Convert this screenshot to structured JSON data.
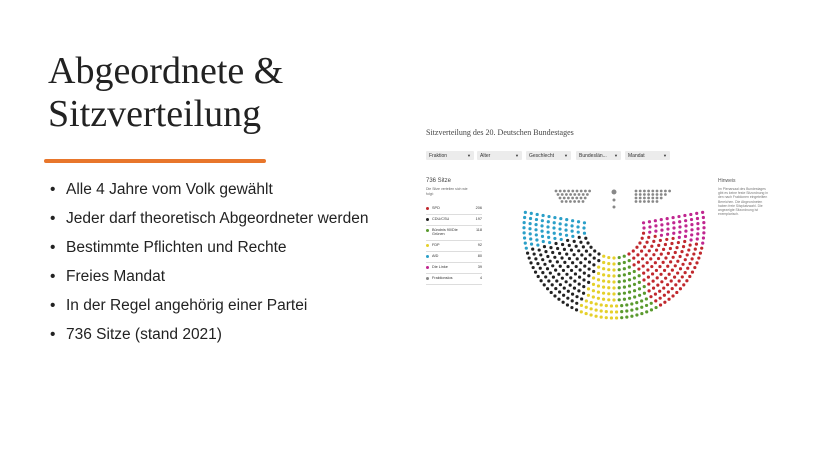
{
  "slide": {
    "title_line1": "Abgeordnete &",
    "title_line2": "Sitzverteilung",
    "accent_color": "#e8762b",
    "bullets": [
      "Alle 4 Jahre vom Volk gewählt",
      "Jeder darf theoretisch Abgeordneter werden",
      "Bestimmte Pflichten und Rechte",
      "Freies Mandat",
      "In der Regel angehörig einer Partei",
      "736 Sitze (stand 2021)"
    ]
  },
  "embed": {
    "title": "Sitzverteilung des 20. Deutschen Bundestages",
    "filters": [
      "Fraktion",
      "Alter",
      "Geschlecht",
      "Bundeslän...",
      "Mandat"
    ],
    "seat_count": "736 Sitze",
    "seat_note": "Die Sitze verteilen sich wie folgt:",
    "legend": [
      {
        "name": "SPD",
        "count": "206",
        "color": "#c0282d"
      },
      {
        "name": "CDU/CSU",
        "count": "197",
        "color": "#222222"
      },
      {
        "name": "Bündnis 90/Die Grünen",
        "count": "118",
        "color": "#5a9a2e"
      },
      {
        "name": "FDP",
        "count": "92",
        "color": "#e5d02a"
      },
      {
        "name": "AfD",
        "count": "80",
        "color": "#2a9fc8"
      },
      {
        "name": "Die Linke",
        "count": "39",
        "color": "#c0268f"
      },
      {
        "name": "Fraktionslos",
        "count": "4",
        "color": "#888888"
      }
    ],
    "hint": {
      "title": "Hinweis",
      "text": "Im Plenarsaal des Bundestages gibt es keine feste Sitzordnung in den nach Fraktionen eingeteilten Bereichen. Die Abgeordneten haben freie Sitzplatzwahl. Die angezeigte Sitzordnung ist exemplarisch."
    }
  }
}
